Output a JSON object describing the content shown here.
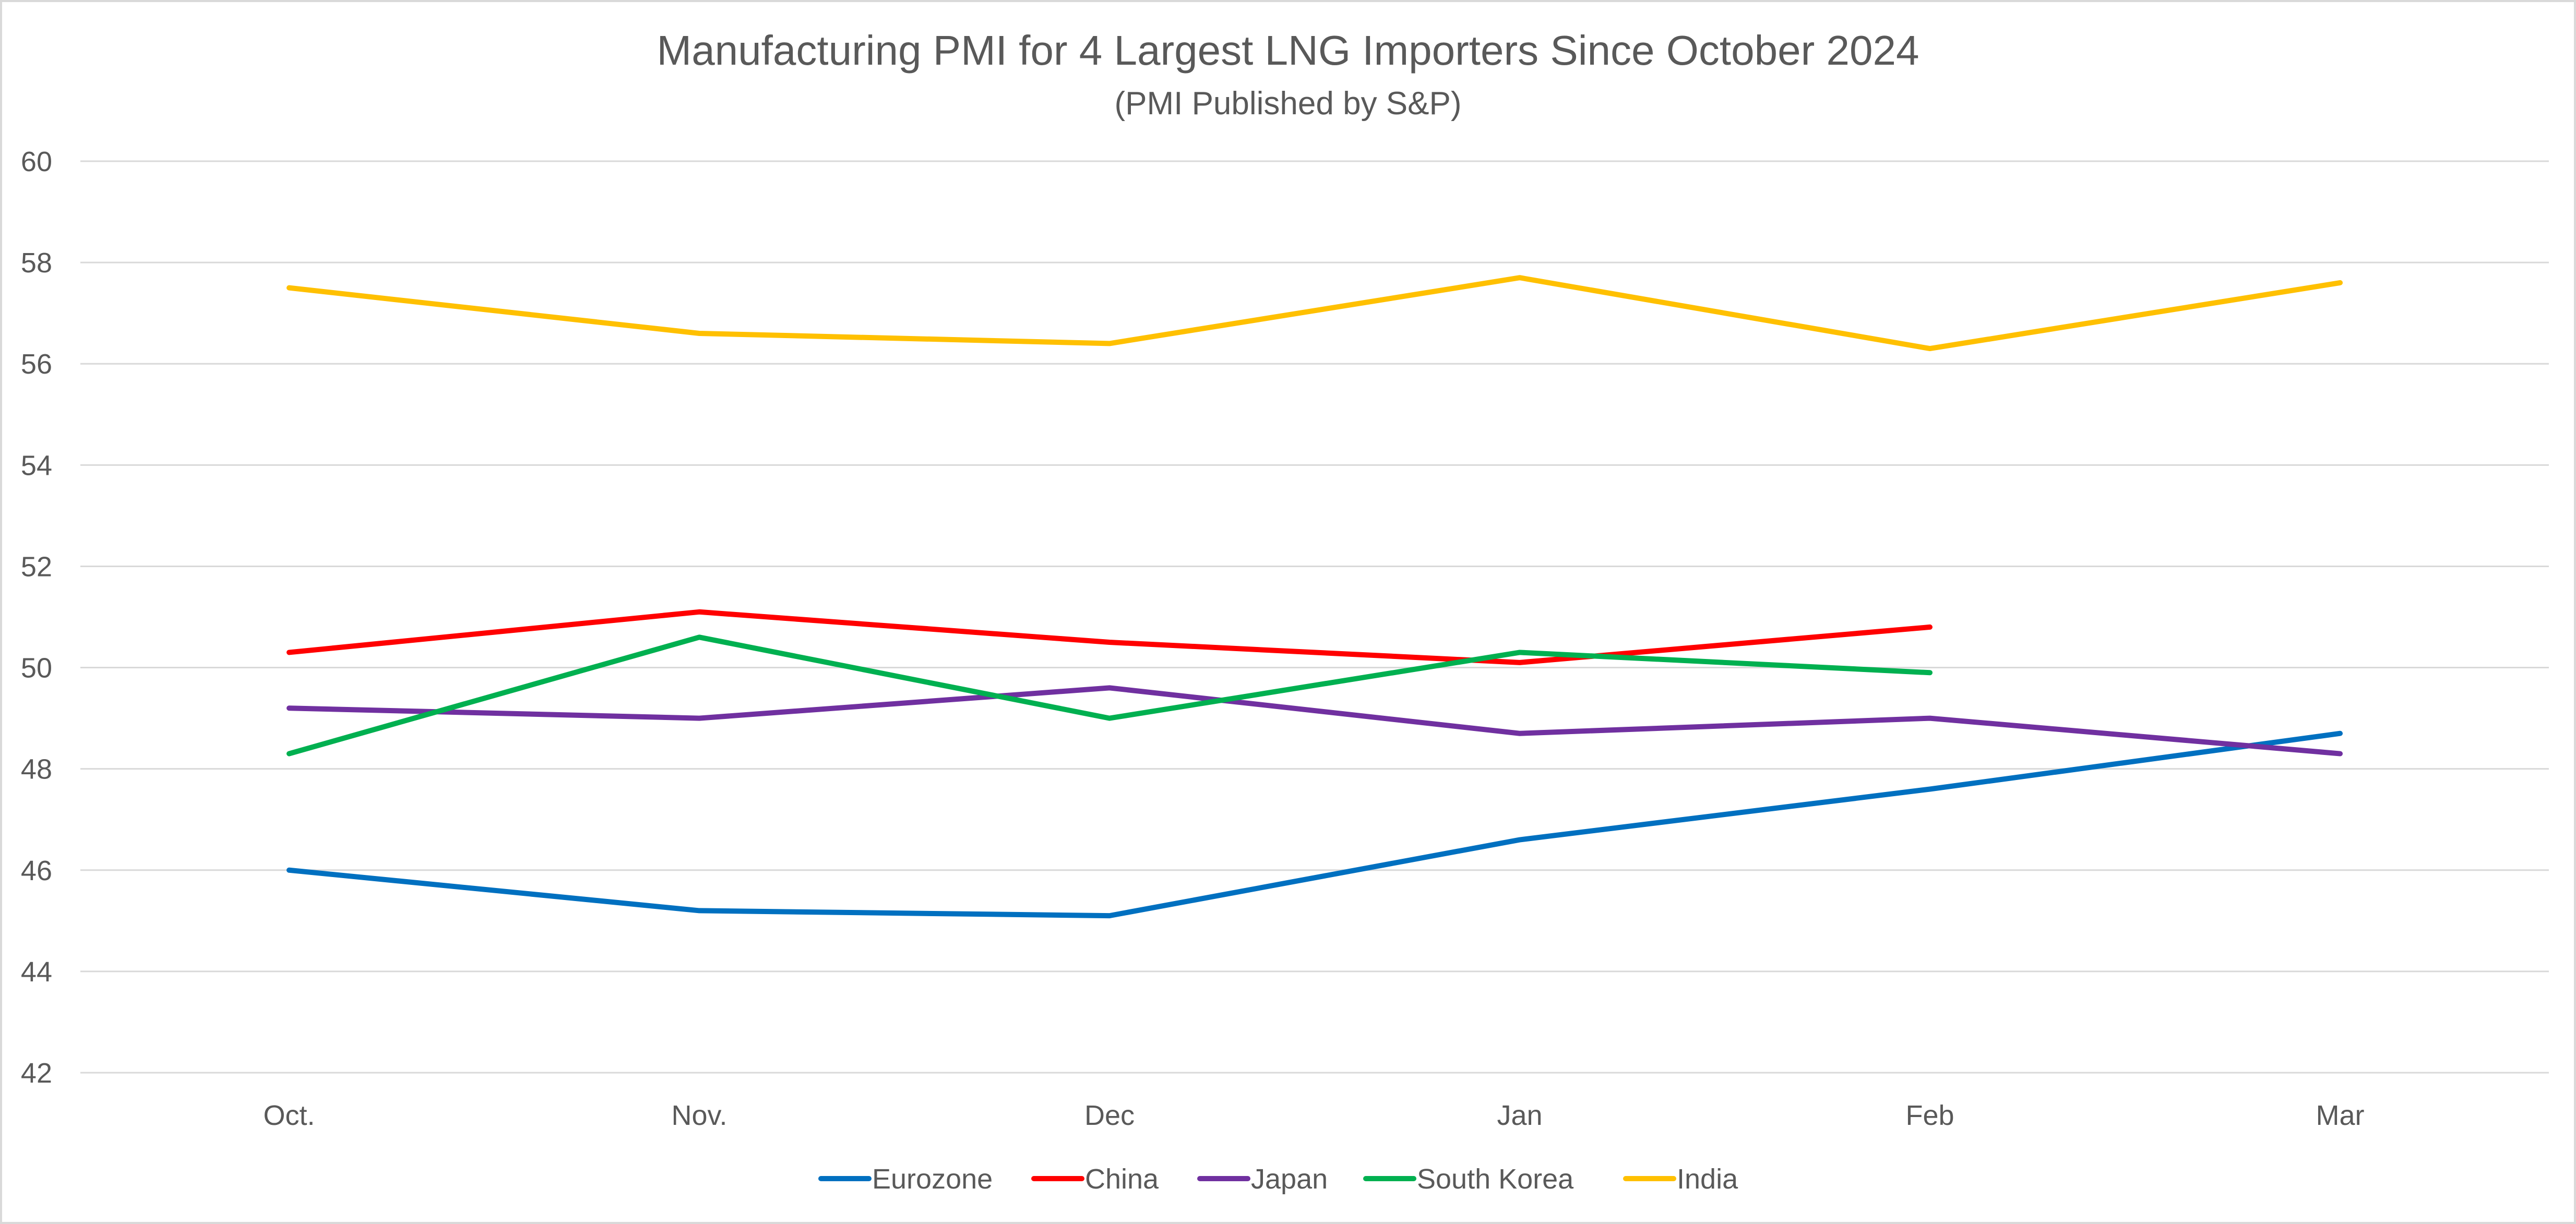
{
  "chart_data": {
    "type": "line",
    "title": "Manufacturing PMI for 4 Largest LNG Importers Since October 2024",
    "subtitle": "(PMI Published by S&P)",
    "xlabel": "",
    "ylabel": "",
    "categories": [
      "Oct.",
      "Nov.",
      "Dec",
      "Jan",
      "Feb",
      "Mar"
    ],
    "ylim": [
      42,
      60
    ],
    "yticks": [
      42,
      44,
      46,
      48,
      50,
      52,
      54,
      56,
      58,
      60
    ],
    "grid": true,
    "legend_position": "bottom",
    "series": [
      {
        "name": "Eurozone",
        "color": "#0070c0",
        "values": [
          46.0,
          45.2,
          45.1,
          46.6,
          47.6,
          48.7
        ]
      },
      {
        "name": "China",
        "color": "#ff0000",
        "values": [
          50.3,
          51.1,
          50.5,
          50.1,
          50.8,
          null
        ]
      },
      {
        "name": "Japan",
        "color": "#7030a0",
        "values": [
          49.2,
          49.0,
          49.6,
          48.7,
          49.0,
          48.3
        ]
      },
      {
        "name": "South Korea",
        "color": "#00b050",
        "values": [
          48.3,
          50.6,
          49.0,
          50.3,
          49.9,
          null
        ]
      },
      {
        "name": "India",
        "color": "#ffc000",
        "values": [
          57.5,
          56.6,
          56.4,
          57.7,
          56.3,
          57.6
        ]
      }
    ]
  }
}
